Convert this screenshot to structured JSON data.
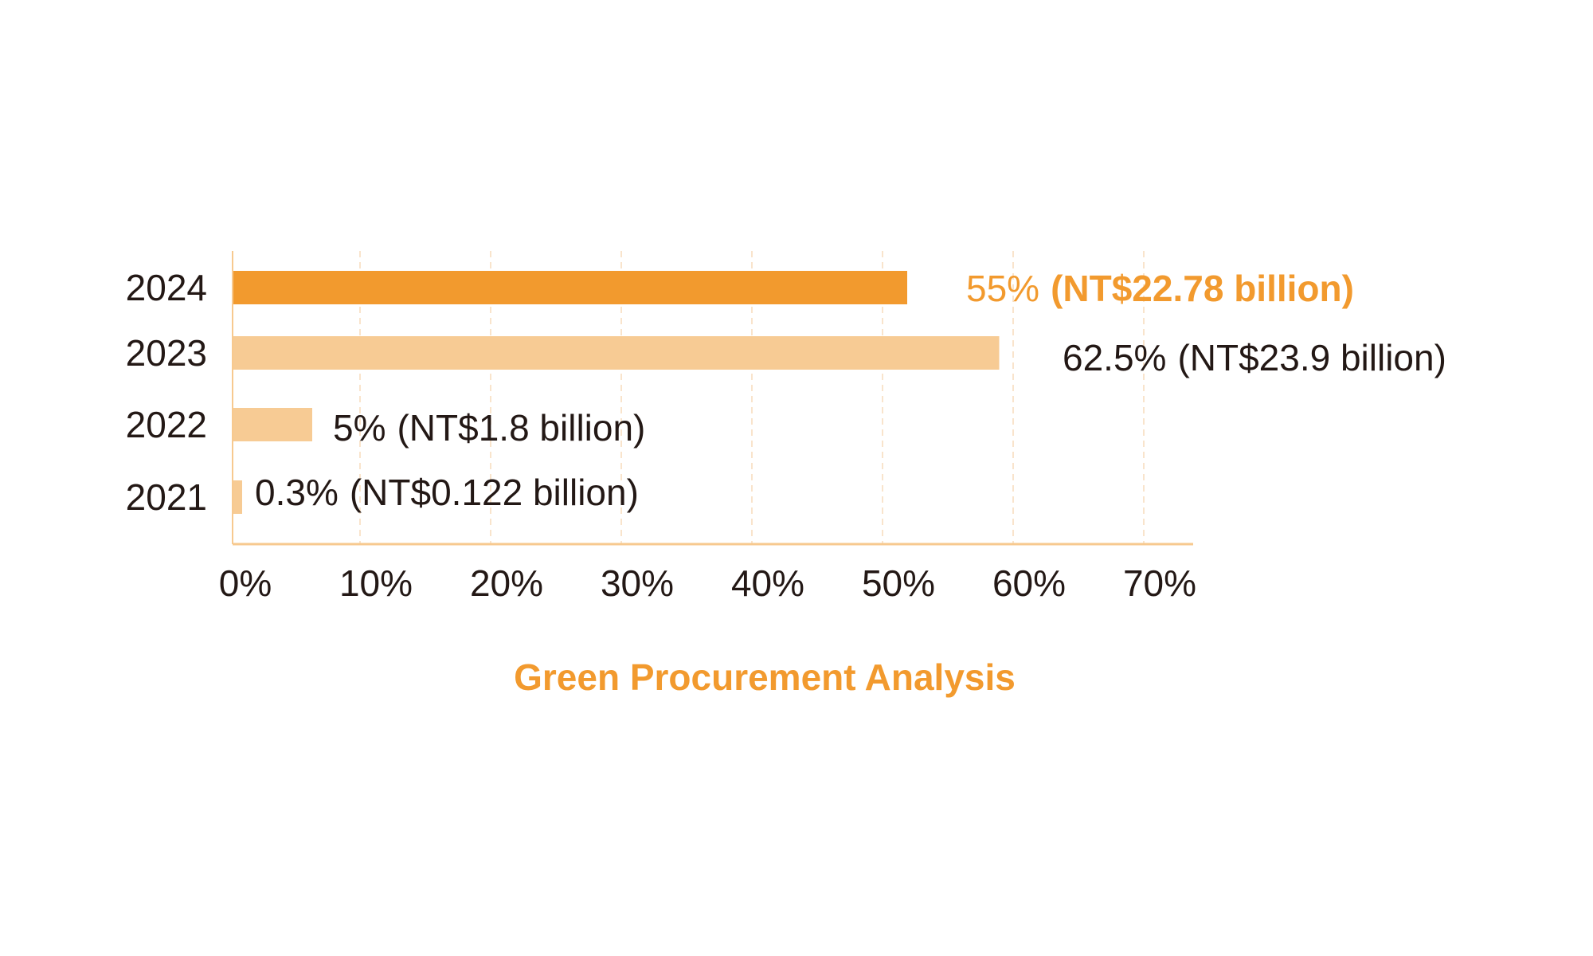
{
  "chart_data": {
    "type": "bar",
    "orientation": "horizontal",
    "title": "Green Procurement Analysis",
    "xlabel": "",
    "ylabel": "",
    "xlim": [
      0,
      70
    ],
    "grid": true,
    "categories": [
      "2024",
      "2023",
      "2022",
      "2021"
    ],
    "values": [
      55,
      62.5,
      5,
      0.3
    ],
    "units": "%",
    "amounts": [
      "NT$22.78 billion",
      "NT$23.9 billion",
      "NT$1.8 billion",
      "NT$0.122 billion"
    ],
    "data_labels": [
      {
        "pct": "55%",
        "amount": "(NT$22.78 billion)",
        "highlight": true
      },
      {
        "pct": "62.5%",
        "amount": "(NT$23.9 billion)",
        "highlight": false
      },
      {
        "pct": "5%",
        "amount": "(NT$1.8 billion)",
        "highlight": false
      },
      {
        "pct": "0.3%",
        "amount": "(NT$0.122 billion)",
        "highlight": false
      }
    ],
    "xticks": [
      "0%",
      "10%",
      "20%",
      "30%",
      "40%",
      "50%",
      "60%",
      "70%"
    ],
    "colors": {
      "highlight_bar": "#f29a2e",
      "bar": "#f7cb94",
      "axis": "#f7c98f",
      "grid": "#f7dcbc",
      "text": "#231815",
      "title": "#f29a2e"
    }
  }
}
